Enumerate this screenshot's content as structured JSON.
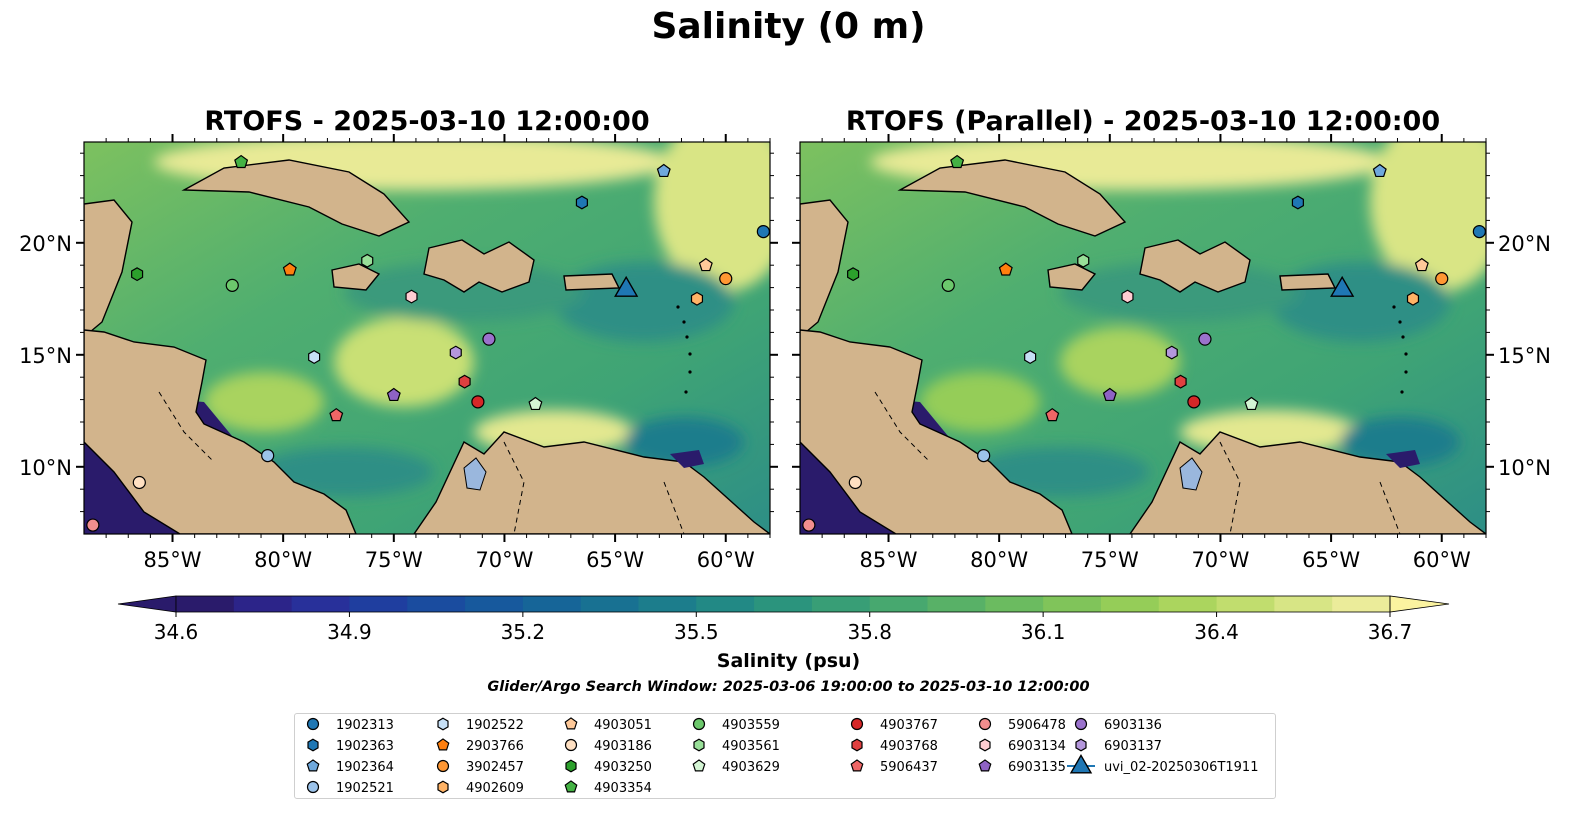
{
  "title": "Salinity (0 m)",
  "panels": [
    {
      "title": "RTOFS - 2025-03-10 12:00:00"
    },
    {
      "title": "RTOFS (Parallel) - 2025-03-10 12:00:00"
    }
  ],
  "map": {
    "extent_lon": [
      -89,
      -58
    ],
    "extent_lat": [
      7,
      24.5
    ],
    "lon_ticks": [
      "85°W",
      "80°W",
      "75°W",
      "70°W",
      "65°W",
      "60°W"
    ],
    "lat_ticks": [
      "20°N",
      "15°N",
      "10°N"
    ],
    "land_color": "#d2b48c",
    "deep_color": "#2a1b6b"
  },
  "colorbar": {
    "label": "Salinity (psu)",
    "min": 34.6,
    "max": 36.7,
    "ticks": [
      "34.6",
      "34.9",
      "35.2",
      "35.5",
      "35.8",
      "36.1",
      "36.4",
      "36.7"
    ],
    "extend": "both",
    "colors": [
      "#2a1b6b",
      "#2c2489",
      "#28309a",
      "#1f3e9f",
      "#1a4c9f",
      "#17599d",
      "#166598",
      "#187192",
      "#1c7d8c",
      "#228985",
      "#2b947d",
      "#389e76",
      "#47a86f",
      "#58b167",
      "#6bbb60",
      "#80c45a",
      "#95cd58",
      "#abd55e",
      "#c1dd6e",
      "#d7e585",
      "#ebec9a"
    ]
  },
  "search_window": "Glider/Argo Search Window: 2025-03-06 19:00:00 to 2025-03-10 12:00:00",
  "legend": [
    {
      "label": "1902313",
      "marker": "circle",
      "color": "#1f77b4"
    },
    {
      "label": "1902363",
      "marker": "hexagon",
      "color": "#1f77b4"
    },
    {
      "label": "1902364",
      "marker": "pentagon",
      "color": "#6fa8dc"
    },
    {
      "label": "1902521",
      "marker": "circle",
      "color": "#9cc3ea"
    },
    {
      "label": "1902522",
      "marker": "hexagon",
      "color": "#c6dff5"
    },
    {
      "label": "2903766",
      "marker": "pentagon",
      "color": "#ff7f0e"
    },
    {
      "label": "3902457",
      "marker": "circle",
      "color": "#ff9733"
    },
    {
      "label": "4902609",
      "marker": "hexagon",
      "color": "#ffb366"
    },
    {
      "label": "4903051",
      "marker": "pentagon",
      "color": "#ffc999"
    },
    {
      "label": "4903186",
      "marker": "circle",
      "color": "#ffe0c2"
    },
    {
      "label": "4903250",
      "marker": "hexagon",
      "color": "#2ca02c"
    },
    {
      "label": "4903354",
      "marker": "pentagon",
      "color": "#44b244"
    },
    {
      "label": "4903559",
      "marker": "circle",
      "color": "#6cc86c"
    },
    {
      "label": "4903561",
      "marker": "hexagon",
      "color": "#98df98"
    },
    {
      "label": "4903629",
      "marker": "pentagon",
      "color": "#d4f5d4"
    },
    {
      "label": "4903767",
      "marker": "circle",
      "color": "#d62728"
    },
    {
      "label": "4903768",
      "marker": "hexagon",
      "color": "#e04040"
    },
    {
      "label": "5906437",
      "marker": "pentagon",
      "color": "#ee6666"
    },
    {
      "label": "5906478",
      "marker": "circle",
      "color": "#f28e8e"
    },
    {
      "label": "6903134",
      "marker": "hexagon",
      "color": "#ffcdd2"
    },
    {
      "label": "6903135",
      "marker": "pentagon",
      "color": "#8e62c4"
    },
    {
      "label": "6903136",
      "marker": "circle",
      "color": "#9a72cc"
    },
    {
      "label": "6903137",
      "marker": "hexagon",
      "color": "#b497dc"
    },
    {
      "label": "uvi_02-20250306T1911",
      "marker": "triangle",
      "color": "#1f77b4"
    }
  ],
  "floats": [
    {
      "label": "1902313",
      "lon": -58.3,
      "lat": 20.5
    },
    {
      "label": "1902363",
      "lon": -66.5,
      "lat": 21.8
    },
    {
      "label": "1902364",
      "lon": -62.8,
      "lat": 23.2
    },
    {
      "label": "1902521",
      "lon": -80.7,
      "lat": 10.5
    },
    {
      "label": "1902522",
      "lon": -78.6,
      "lat": 14.9
    },
    {
      "label": "2903766",
      "lon": -79.7,
      "lat": 18.8
    },
    {
      "label": "3902457",
      "lon": -60.0,
      "lat": 18.4
    },
    {
      "label": "4902609",
      "lon": -61.3,
      "lat": 17.5
    },
    {
      "label": "4903051",
      "lon": -60.9,
      "lat": 19.0
    },
    {
      "label": "4903186",
      "lon": -86.5,
      "lat": 9.3
    },
    {
      "label": "4903250",
      "lon": -86.6,
      "lat": 18.6
    },
    {
      "label": "4903354",
      "lon": -81.9,
      "lat": 23.6
    },
    {
      "label": "4903559",
      "lon": -82.3,
      "lat": 18.1
    },
    {
      "label": "4903561",
      "lon": -76.2,
      "lat": 19.2
    },
    {
      "label": "4903629",
      "lon": -68.6,
      "lat": 12.8
    },
    {
      "label": "4903767",
      "lon": -71.2,
      "lat": 12.9
    },
    {
      "label": "4903768",
      "lon": -71.8,
      "lat": 13.8
    },
    {
      "label": "5906437",
      "lon": -77.6,
      "lat": 12.3
    },
    {
      "label": "5906478",
      "lon": -88.6,
      "lat": 7.4
    },
    {
      "label": "6903134",
      "lon": -74.2,
      "lat": 17.6
    },
    {
      "label": "6903135",
      "lon": -75.0,
      "lat": 13.2
    },
    {
      "label": "6903136",
      "lon": -70.7,
      "lat": 15.7
    },
    {
      "label": "6903137",
      "lon": -72.2,
      "lat": 15.1
    },
    {
      "label": "uvi_02-20250306T1911",
      "lon": -64.5,
      "lat": 17.9
    }
  ]
}
